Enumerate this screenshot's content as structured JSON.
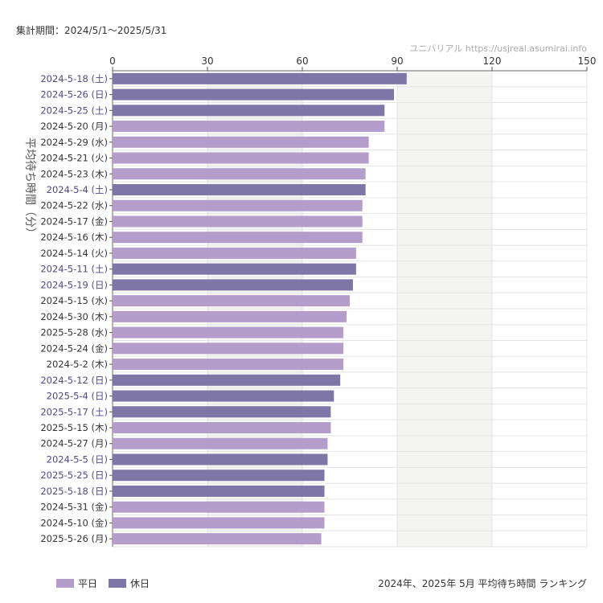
{
  "header": {
    "period": "集計期間：2024/5/1～2025/5/31",
    "source": "ユニバリアル https://usjreal.asumirai.info"
  },
  "caption": "2024年、2025年 5月 平均待ち時間 ランキング",
  "legend": [
    {
      "label": "平日",
      "color": "#b49dcb"
    },
    {
      "label": "休日",
      "color": "#7d76a6"
    }
  ],
  "chart_data": {
    "type": "bar",
    "orientation": "horizontal",
    "ylabel": "平均待ち時間（分）",
    "xlim": [
      0,
      150
    ],
    "xticks": [
      0,
      30,
      60,
      90,
      120,
      150
    ],
    "grid": true,
    "legend_position": "bottom-left",
    "categories": [
      "2024-5-18 (土)",
      "2024-5-26 (日)",
      "2024-5-25 (土)",
      "2024-5-20 (月)",
      "2024-5-29 (水)",
      "2024-5-21 (火)",
      "2024-5-23 (木)",
      "2024-5-4 (土)",
      "2024-5-22 (水)",
      "2024-5-17 (金)",
      "2024-5-16 (木)",
      "2024-5-14 (火)",
      "2024-5-11 (土)",
      "2024-5-19 (日)",
      "2024-5-15 (水)",
      "2024-5-30 (木)",
      "2025-5-28 (水)",
      "2024-5-24 (金)",
      "2024-5-2 (木)",
      "2024-5-12 (日)",
      "2025-5-4 (日)",
      "2025-5-17 (土)",
      "2025-5-15 (木)",
      "2024-5-27 (月)",
      "2024-5-5 (日)",
      "2025-5-25 (日)",
      "2025-5-18 (日)",
      "2024-5-31 (金)",
      "2024-5-10 (金)",
      "2025-5-26 (月)"
    ],
    "values": [
      93,
      89,
      86,
      86,
      81,
      81,
      80,
      80,
      79,
      79,
      79,
      77,
      77,
      76,
      75,
      74,
      73,
      73,
      73,
      72,
      70,
      69,
      69,
      68,
      68,
      67,
      67,
      67,
      67,
      66
    ],
    "holiday": [
      1,
      1,
      1,
      0,
      0,
      0,
      0,
      1,
      0,
      0,
      0,
      0,
      1,
      1,
      0,
      0,
      0,
      0,
      0,
      1,
      1,
      1,
      0,
      0,
      1,
      1,
      1,
      0,
      0,
      0
    ]
  }
}
